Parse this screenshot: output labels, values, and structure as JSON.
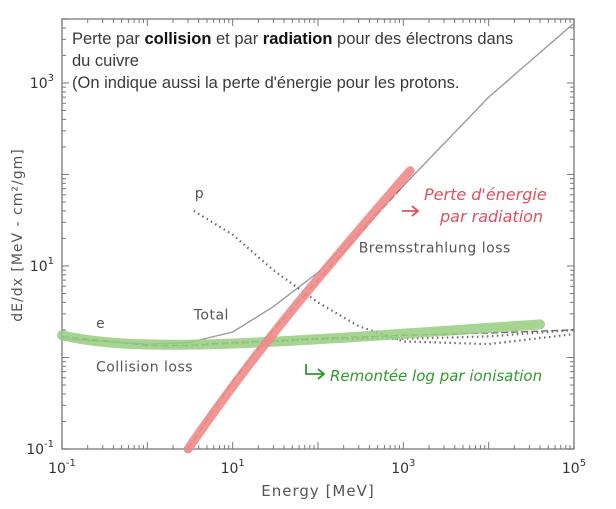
{
  "caption": {
    "part1": "Perte par ",
    "bold1": "collision",
    "part2": " et par ",
    "bold2": "radiation",
    "part3": " pour des électrons dans du cuivre",
    "line2": "(On indique aussi la perte d'énergie pour les protons."
  },
  "chart_data": {
    "type": "line",
    "xlabel": "Energy [MeV]",
    "ylabel": "dE/dx [MeV - cm²/gm]",
    "xscale": "log",
    "yscale": "log",
    "xlim": [
      0.1,
      100000
    ],
    "ylim": [
      0.1,
      5000
    ],
    "x_ticks": [
      {
        "value": 0.1,
        "base": "10",
        "exp": "-1"
      },
      {
        "value": 10,
        "base": "10",
        "exp": "1"
      },
      {
        "value": 1000,
        "base": "10",
        "exp": "3"
      },
      {
        "value": 100000,
        "base": "10",
        "exp": "5"
      }
    ],
    "y_ticks": [
      {
        "value": 0.1,
        "base": "10",
        "exp": "-1"
      },
      {
        "value": 10,
        "base": "10",
        "exp": "1"
      },
      {
        "value": 1000,
        "base": "10",
        "exp": "3"
      }
    ],
    "series": [
      {
        "name": "Total",
        "style": "solid",
        "color": "#9a9a9a",
        "x": [
          0.1,
          1,
          3,
          10,
          30,
          100,
          300,
          1000,
          10000,
          100000
        ],
        "y": [
          1.6,
          1.4,
          1.45,
          1.9,
          3.6,
          8.5,
          24,
          75,
          700,
          4500
        ]
      },
      {
        "name": "Collision loss",
        "style": "dashed",
        "color": "#6a6a6a",
        "x": [
          0.1,
          0.5,
          1,
          3,
          10,
          100,
          1000,
          10000,
          100000
        ],
        "y": [
          1.7,
          1.45,
          1.35,
          1.35,
          1.45,
          1.6,
          1.75,
          1.85,
          2.0
        ]
      },
      {
        "name": "Bremsstrahlung loss",
        "style": "dashed",
        "color": "#6a6a6a",
        "x": [
          3,
          10,
          30,
          100,
          300,
          1000
        ],
        "y": [
          0.1,
          0.55,
          2.0,
          7.0,
          22,
          75
        ]
      },
      {
        "name": "p",
        "style": "dotted",
        "color": "#6a6a6a",
        "x": [
          3.5,
          10,
          30,
          100,
          300,
          1000,
          10000,
          100000
        ],
        "y": [
          40,
          22,
          9,
          4,
          2.2,
          1.5,
          1.4,
          1.8
        ]
      },
      {
        "name": "e",
        "style": "dotted",
        "color": "#6a6a6a",
        "x": [
          5,
          30,
          100,
          1000,
          10000,
          100000
        ],
        "y": [
          1.4,
          1.5,
          1.6,
          1.6,
          1.7,
          2.0
        ]
      }
    ],
    "annotations": [
      {
        "text": "Total",
        "x": 3.5,
        "y": 2.6
      },
      {
        "text": "Bremsstrahlung loss",
        "x": 300,
        "y": 14
      },
      {
        "text": "Collision loss",
        "x": 0.25,
        "y": 0.7
      },
      {
        "text": "p",
        "x": 3.6,
        "y": 55
      },
      {
        "text": "e",
        "x": 0.25,
        "y": 2.1
      }
    ],
    "handwritten": {
      "radiation_note": "Perte d'énergie par radiation",
      "ionisation_note": "Remontée log par ionisation",
      "radiation_color": "#e05060",
      "ionisation_color": "#2e9a2e",
      "red_highlight_color": "#f08a8a",
      "green_highlight_color": "#96cc80"
    }
  }
}
